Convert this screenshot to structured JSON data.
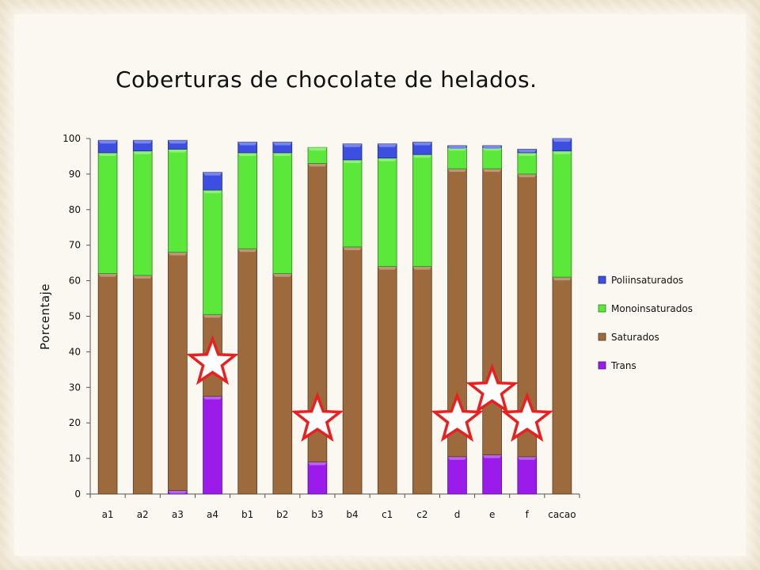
{
  "chart_data": {
    "type": "bar",
    "stacked": true,
    "title": "Coberturas de chocolate de helados.",
    "xlabel": "",
    "ylabel": "Porcentaje",
    "ylim": [
      0,
      100
    ],
    "yticks": [
      0,
      10,
      20,
      30,
      40,
      50,
      60,
      70,
      80,
      90,
      100
    ],
    "grid": false,
    "legend_position": "right",
    "categories": [
      "a1",
      "a2",
      "a3",
      "a4",
      "b1",
      "b2",
      "b3",
      "b4",
      "c1",
      "c2",
      "d",
      "e",
      "f",
      "cacao"
    ],
    "series": [
      {
        "name": "Trans",
        "color": "#9b1bea",
        "values": [
          0,
          0,
          1,
          27.5,
          0,
          0,
          9,
          0,
          0,
          0,
          10.5,
          11,
          10.5,
          0
        ]
      },
      {
        "name": "Saturados",
        "color": "#9c6a3c",
        "values": [
          62,
          61.5,
          67,
          23,
          69,
          62,
          84,
          69.5,
          64,
          64,
          81,
          80.5,
          79.5,
          61
        ]
      },
      {
        "name": "Monoinsaturados",
        "color": "#5ce83a",
        "values": [
          34,
          35,
          29,
          35,
          27,
          34,
          4.5,
          24.5,
          30.5,
          31.5,
          6,
          6,
          6,
          35.5
        ]
      },
      {
        "name": "Poliinsaturados",
        "color": "#3c4fe0",
        "values": [
          3.5,
          3,
          2.5,
          5,
          3,
          3,
          0,
          4.5,
          4,
          3.5,
          0.5,
          0.5,
          1,
          3.5
        ]
      }
    ],
    "legend_order": [
      "Poliinsaturados",
      "Monoinsaturados",
      "Saturados",
      "Trans"
    ],
    "annotations": [
      {
        "type": "star",
        "category": "a4",
        "value": 37,
        "color": "#e82020"
      },
      {
        "type": "star",
        "category": "b3",
        "value": 21,
        "color": "#e82020"
      },
      {
        "type": "star",
        "category": "d",
        "value": 21,
        "color": "#e82020"
      },
      {
        "type": "star",
        "category": "e",
        "value": 29,
        "color": "#e82020"
      },
      {
        "type": "star",
        "category": "f",
        "value": 21,
        "color": "#e82020"
      }
    ]
  }
}
